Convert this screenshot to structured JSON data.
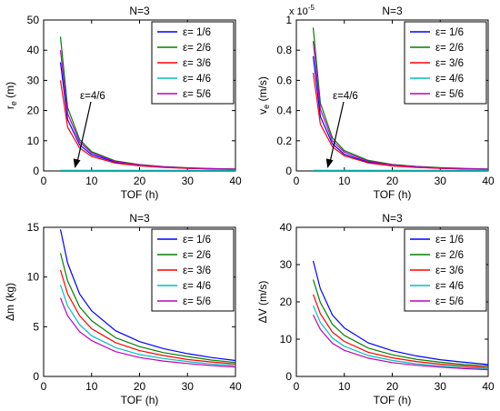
{
  "chart_data": [
    {
      "type": "line",
      "title": "N=3",
      "xlabel": "TOF (h)",
      "ylabel": "r_e (m)",
      "ylabel_main": "r",
      "ylabel_sub": "e",
      "ylabel_unit": "(m)",
      "scale_note": "",
      "xlim": [
        0,
        40
      ],
      "ylim": [
        0,
        50
      ],
      "xticks": [
        "0",
        "10",
        "20",
        "30",
        "40"
      ],
      "yticks": [
        "0",
        "10",
        "20",
        "30",
        "40",
        "50"
      ],
      "legend_position": "top-right",
      "grid": false,
      "annotation": {
        "text": "ε=4/6",
        "target": [
          6.5,
          0.3
        ]
      },
      "x": [
        3.5,
        5,
        7.5,
        10,
        15,
        20,
        25,
        30,
        35,
        40
      ],
      "series": [
        {
          "name": "ε= 1/6",
          "color": "#0000ff",
          "values": [
            36.0,
            17.0,
            8.6,
            5.4,
            2.9,
            1.8,
            1.25,
            0.9,
            0.7,
            0.55
          ]
        },
        {
          "name": "ε= 2/6",
          "color": "#008000",
          "values": [
            44.5,
            21.0,
            10.4,
            6.4,
            3.3,
            2.1,
            1.45,
            1.05,
            0.8,
            0.65
          ]
        },
        {
          "name": "ε= 3/6",
          "color": "#ff0000",
          "values": [
            30.0,
            14.5,
            7.6,
            4.8,
            2.6,
            1.7,
            1.15,
            0.85,
            0.65,
            0.5
          ]
        },
        {
          "name": "ε= 4/6",
          "color": "#00bfbf",
          "values": [
            0.2,
            0.2,
            0.2,
            0.2,
            0.2,
            0.2,
            0.2,
            0.2,
            0.2,
            0.2
          ]
        },
        {
          "name": "ε= 5/6",
          "color": "#bf00bf",
          "values": [
            40.0,
            19.0,
            9.6,
            6.0,
            3.1,
            2.0,
            1.35,
            1.0,
            0.75,
            0.6
          ]
        }
      ]
    },
    {
      "type": "line",
      "title": "N=3",
      "xlabel": "TOF (h)",
      "ylabel": "v_e (m/s)",
      "ylabel_main": "v",
      "ylabel_sub": "e",
      "ylabel_unit": "(m/s)",
      "scale_note": "x 10",
      "scale_exp": "-5",
      "xlim": [
        0,
        40
      ],
      "ylim": [
        0,
        1
      ],
      "xticks": [
        "0",
        "10",
        "20",
        "30",
        "40"
      ],
      "yticks": [
        "0",
        "0.2",
        "0.4",
        "0.6",
        "0.8",
        "1"
      ],
      "legend_position": "top-right",
      "grid": false,
      "annotation": {
        "text": "ε=4/6",
        "target": [
          6.5,
          0.006
        ]
      },
      "x": [
        3.5,
        5,
        7.5,
        10,
        15,
        20,
        25,
        30,
        35,
        40
      ],
      "series": [
        {
          "name": "ε= 1/6",
          "color": "#0000ff",
          "values": [
            0.76,
            0.36,
            0.18,
            0.11,
            0.058,
            0.036,
            0.025,
            0.018,
            0.014,
            0.011
          ]
        },
        {
          "name": "ε= 2/6",
          "color": "#008000",
          "values": [
            0.95,
            0.45,
            0.22,
            0.135,
            0.07,
            0.043,
            0.03,
            0.022,
            0.017,
            0.013
          ]
        },
        {
          "name": "ε= 3/6",
          "color": "#ff0000",
          "values": [
            0.65,
            0.31,
            0.16,
            0.1,
            0.053,
            0.033,
            0.023,
            0.017,
            0.013,
            0.01
          ]
        },
        {
          "name": "ε= 4/6",
          "color": "#00bfbf",
          "values": [
            0.004,
            0.004,
            0.004,
            0.004,
            0.004,
            0.004,
            0.004,
            0.004,
            0.004,
            0.004
          ]
        },
        {
          "name": "ε= 5/6",
          "color": "#bf00bf",
          "values": [
            0.86,
            0.41,
            0.2,
            0.125,
            0.064,
            0.04,
            0.028,
            0.02,
            0.015,
            0.012
          ]
        }
      ]
    },
    {
      "type": "line",
      "title": "N=3",
      "xlabel": "TOF (h)",
      "ylabel": "Δm (kg)",
      "ylabel_main": "Δm (kg)",
      "ylabel_sub": "",
      "ylabel_unit": "",
      "scale_note": "",
      "xlim": [
        0,
        40
      ],
      "ylim": [
        0,
        15
      ],
      "xticks": [
        "0",
        "10",
        "20",
        "30",
        "40"
      ],
      "yticks": [
        "0",
        "5",
        "10",
        "15"
      ],
      "legend_position": "top-right",
      "grid": false,
      "x": [
        3.5,
        5,
        7.5,
        10,
        15,
        20,
        25,
        30,
        35,
        40
      ],
      "series": [
        {
          "name": "ε= 1/6",
          "color": "#0000ff",
          "values": [
            14.8,
            11.4,
            8.3,
            6.6,
            4.6,
            3.5,
            2.8,
            2.3,
            1.9,
            1.6
          ]
        },
        {
          "name": "ε= 2/6",
          "color": "#008000",
          "values": [
            12.4,
            9.6,
            7.0,
            5.6,
            3.9,
            3.0,
            2.4,
            2.0,
            1.65,
            1.4
          ]
        },
        {
          "name": "ε= 3/6",
          "color": "#ff0000",
          "values": [
            10.7,
            8.3,
            6.1,
            4.8,
            3.4,
            2.6,
            2.1,
            1.7,
            1.45,
            1.25
          ]
        },
        {
          "name": "ε= 4/6",
          "color": "#00bfbf",
          "values": [
            9.2,
            7.1,
            5.2,
            4.1,
            2.9,
            2.2,
            1.8,
            1.5,
            1.25,
            1.1
          ]
        },
        {
          "name": "ε= 5/6",
          "color": "#bf00bf",
          "values": [
            7.9,
            6.1,
            4.5,
            3.6,
            2.5,
            1.9,
            1.55,
            1.3,
            1.1,
            0.95
          ]
        }
      ]
    },
    {
      "type": "line",
      "title": "N=3",
      "xlabel": "TOF (h)",
      "ylabel": "ΔV (m/s)",
      "ylabel_main": "ΔV (m/s)",
      "ylabel_sub": "",
      "ylabel_unit": "",
      "scale_note": "",
      "xlim": [
        0,
        40
      ],
      "ylim": [
        0,
        40
      ],
      "xticks": [
        "0",
        "10",
        "20",
        "30",
        "40"
      ],
      "yticks": [
        "0",
        "10",
        "20",
        "30",
        "40"
      ],
      "legend_position": "top-right",
      "grid": false,
      "x": [
        3.5,
        5,
        7.5,
        10,
        15,
        20,
        25,
        30,
        35,
        40
      ],
      "series": [
        {
          "name": "ε= 1/6",
          "color": "#0000ff",
          "values": [
            31.0,
            23.5,
            16.5,
            13.0,
            9.0,
            6.9,
            5.5,
            4.5,
            3.8,
            3.2
          ]
        },
        {
          "name": "ε= 2/6",
          "color": "#008000",
          "values": [
            26.0,
            19.8,
            14.0,
            11.0,
            7.6,
            5.8,
            4.6,
            3.8,
            3.2,
            2.8
          ]
        },
        {
          "name": "ε= 3/6",
          "color": "#ff0000",
          "values": [
            22.0,
            16.8,
            11.9,
            9.4,
            6.5,
            5.0,
            4.0,
            3.3,
            2.8,
            2.4
          ]
        },
        {
          "name": "ε= 4/6",
          "color": "#00bfbf",
          "values": [
            19.0,
            14.5,
            10.3,
            8.1,
            5.6,
            4.3,
            3.4,
            2.8,
            2.4,
            2.1
          ]
        },
        {
          "name": "ε= 5/6",
          "color": "#bf00bf",
          "values": [
            16.5,
            12.6,
            8.9,
            7.0,
            4.9,
            3.7,
            3.0,
            2.5,
            2.1,
            1.8
          ]
        }
      ]
    }
  ]
}
